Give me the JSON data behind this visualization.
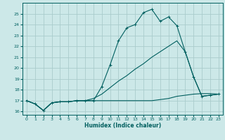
{
  "xlabel": "Humidex (Indice chaleur)",
  "bg_color": "#cce8e8",
  "grid_color": "#aacccc",
  "line_color": "#005f5f",
  "ylim": [
    15.7,
    26.0
  ],
  "xlim": [
    -0.5,
    23.5
  ],
  "yticks": [
    16,
    17,
    18,
    19,
    20,
    21,
    22,
    23,
    24,
    25
  ],
  "xticks": [
    0,
    1,
    2,
    3,
    4,
    5,
    6,
    7,
    8,
    9,
    10,
    11,
    12,
    13,
    14,
    15,
    16,
    17,
    18,
    19,
    20,
    21,
    22,
    23
  ],
  "series1_x": [
    0,
    1,
    2,
    3,
    4,
    5,
    6,
    7,
    8,
    9,
    10,
    11,
    12,
    13,
    14,
    15,
    16,
    17,
    18,
    19,
    20,
    21,
    22,
    23
  ],
  "series1_y": [
    17.0,
    16.7,
    16.1,
    16.8,
    16.9,
    16.9,
    17.0,
    17.0,
    17.0,
    18.3,
    20.3,
    22.5,
    23.7,
    24.0,
    25.1,
    25.4,
    24.3,
    24.7,
    23.9,
    21.5,
    19.2,
    17.4,
    17.5,
    17.6
  ],
  "series2_x": [
    0,
    1,
    2,
    3,
    4,
    5,
    6,
    7,
    8,
    9,
    10,
    11,
    12,
    13,
    14,
    15,
    16,
    17,
    18,
    19,
    20,
    21,
    22,
    23
  ],
  "series2_y": [
    17.0,
    16.7,
    16.1,
    16.8,
    16.9,
    16.9,
    17.0,
    17.0,
    17.2,
    17.6,
    18.2,
    18.8,
    19.3,
    19.9,
    20.4,
    21.0,
    21.5,
    22.0,
    22.5,
    21.5,
    19.2,
    17.4,
    17.5,
    17.6
  ],
  "series3_x": [
    0,
    1,
    2,
    3,
    4,
    5,
    6,
    7,
    8,
    9,
    10,
    11,
    12,
    13,
    14,
    15,
    16,
    17,
    18,
    19,
    20,
    21,
    22,
    23
  ],
  "series3_y": [
    17.0,
    16.7,
    16.1,
    16.8,
    16.9,
    16.9,
    17.0,
    17.0,
    17.0,
    17.0,
    17.0,
    17.0,
    17.0,
    17.0,
    17.0,
    17.0,
    17.1,
    17.2,
    17.4,
    17.5,
    17.6,
    17.65,
    17.65,
    17.6
  ]
}
